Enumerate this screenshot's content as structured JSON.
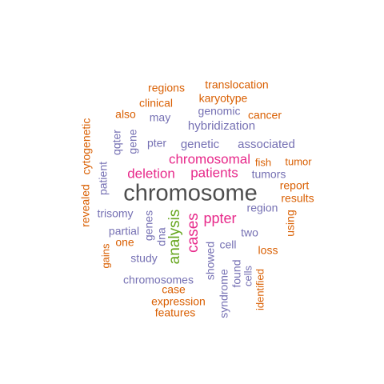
{
  "palette": {
    "orange": "#d95f02",
    "slate": "#7570b3",
    "magenta": "#e7298a",
    "green": "#66a61e",
    "dark": "#4d4d4d"
  },
  "words": [
    {
      "text": "chromosome",
      "color": "dark"
    },
    {
      "text": "patients",
      "color": "magenta"
    },
    {
      "text": "chromosomal",
      "color": "magenta"
    },
    {
      "text": "deletion",
      "color": "magenta"
    },
    {
      "text": "cases",
      "color": "magenta"
    },
    {
      "text": "ppter",
      "color": "magenta"
    },
    {
      "text": "analysis",
      "color": "green"
    },
    {
      "text": "hybridization",
      "color": "slate"
    },
    {
      "text": "genetic",
      "color": "slate"
    },
    {
      "text": "associated",
      "color": "slate"
    },
    {
      "text": "genomic",
      "color": "slate"
    },
    {
      "text": "may",
      "color": "slate"
    },
    {
      "text": "pter",
      "color": "slate"
    },
    {
      "text": "gene",
      "color": "slate"
    },
    {
      "text": "qqter",
      "color": "slate"
    },
    {
      "text": "tumors",
      "color": "slate"
    },
    {
      "text": "patient",
      "color": "slate"
    },
    {
      "text": "region",
      "color": "slate"
    },
    {
      "text": "trisomy",
      "color": "slate"
    },
    {
      "text": "genes",
      "color": "slate"
    },
    {
      "text": "partial",
      "color": "slate"
    },
    {
      "text": "dna",
      "color": "slate"
    },
    {
      "text": "two",
      "color": "slate"
    },
    {
      "text": "cell",
      "color": "slate"
    },
    {
      "text": "showed",
      "color": "slate"
    },
    {
      "text": "study",
      "color": "slate"
    },
    {
      "text": "chromosomes",
      "color": "slate"
    },
    {
      "text": "found",
      "color": "slate"
    },
    {
      "text": "syndrome",
      "color": "slate"
    },
    {
      "text": "cells",
      "color": "slate"
    },
    {
      "text": "regions",
      "color": "orange"
    },
    {
      "text": "translocation",
      "color": "orange"
    },
    {
      "text": "karyotype",
      "color": "orange"
    },
    {
      "text": "clinical",
      "color": "orange"
    },
    {
      "text": "also",
      "color": "orange"
    },
    {
      "text": "cancer",
      "color": "orange"
    },
    {
      "text": "cytogenetic",
      "color": "orange"
    },
    {
      "text": "fish",
      "color": "orange"
    },
    {
      "text": "tumor",
      "color": "orange"
    },
    {
      "text": "report",
      "color": "orange"
    },
    {
      "text": "revealed",
      "color": "orange"
    },
    {
      "text": "results",
      "color": "orange"
    },
    {
      "text": "using",
      "color": "orange"
    },
    {
      "text": "one",
      "color": "orange"
    },
    {
      "text": "loss",
      "color": "orange"
    },
    {
      "text": "gains",
      "color": "orange"
    },
    {
      "text": "case",
      "color": "orange"
    },
    {
      "text": "identified",
      "color": "orange"
    },
    {
      "text": "expression",
      "color": "orange"
    },
    {
      "text": "features",
      "color": "orange"
    }
  ]
}
